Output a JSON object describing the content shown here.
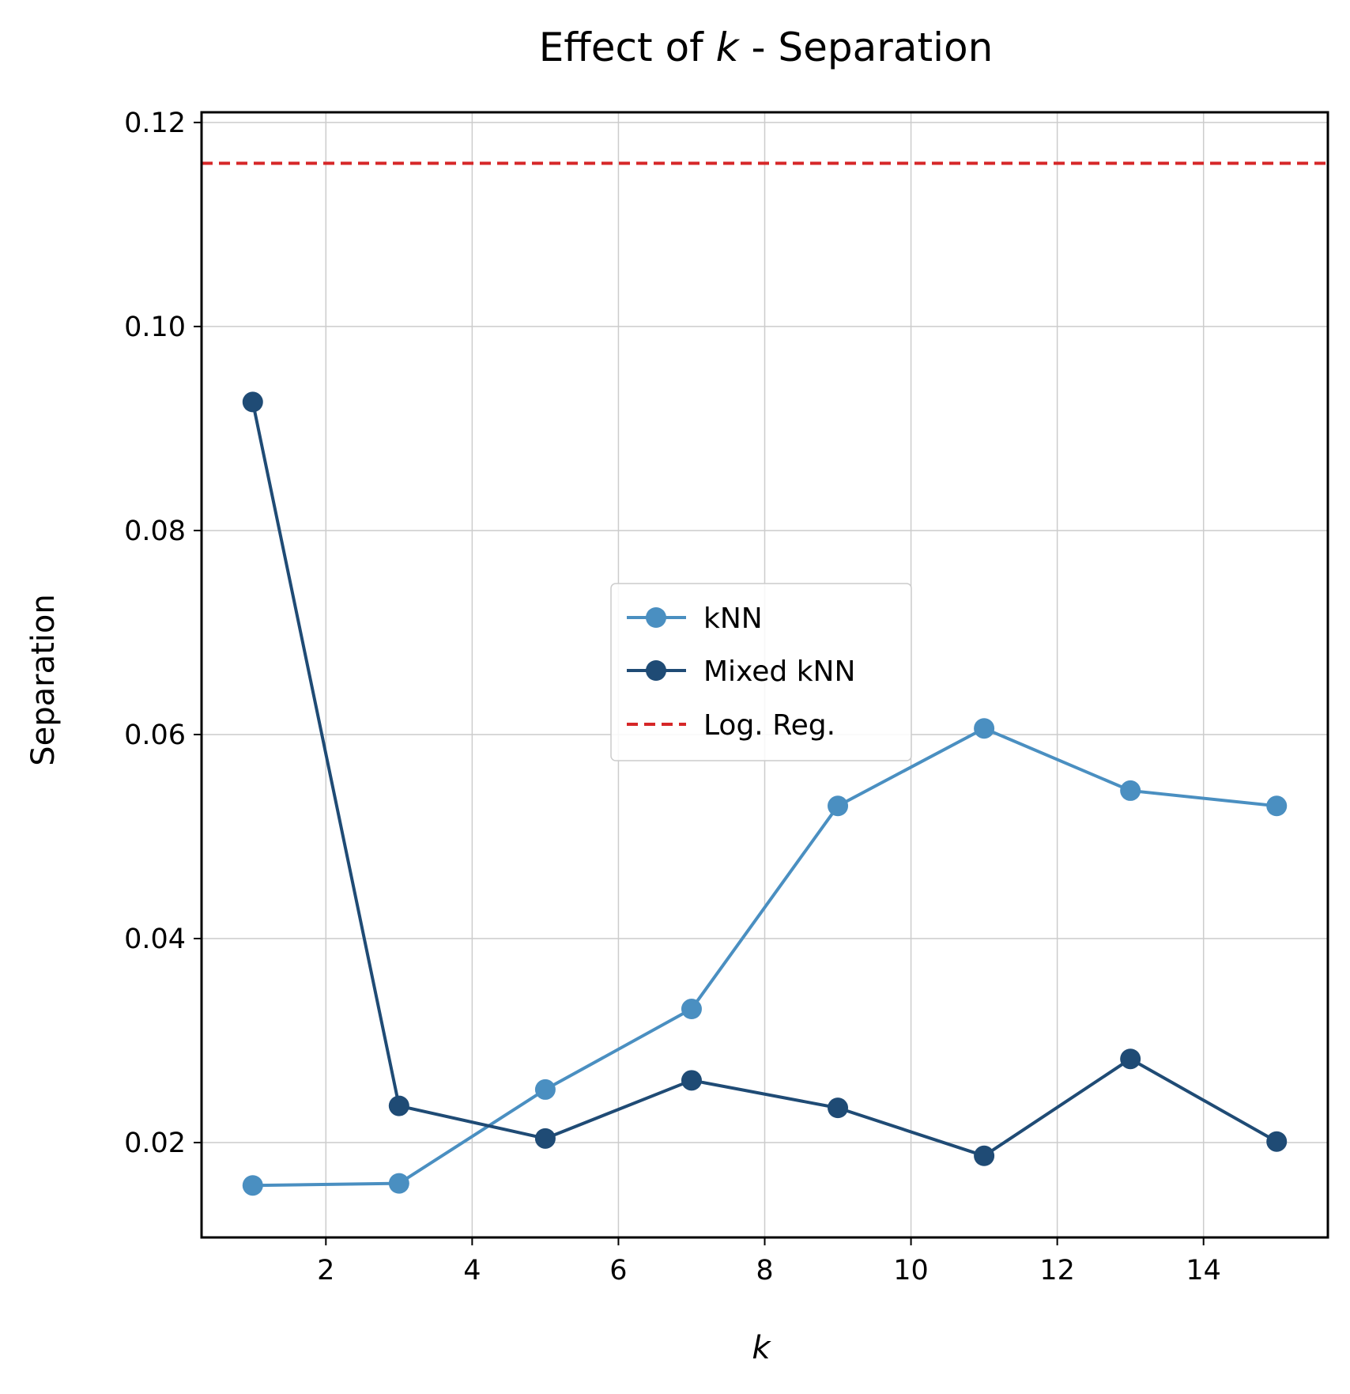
{
  "chart_data": {
    "type": "line",
    "title_prefix": "Effect of ",
    "title_variable": "k",
    "title_suffix": " - Separation",
    "xlabel": "k",
    "ylabel": "Separation",
    "xlim": [
      0.3,
      15.7
    ],
    "ylim": [
      0.0107,
      0.121
    ],
    "xticks": [
      2,
      4,
      6,
      8,
      10,
      12,
      14
    ],
    "yticks": [
      0.02,
      0.04,
      0.06,
      0.08,
      0.1,
      0.12
    ],
    "ytick_labels": [
      "0.02",
      "0.04",
      "0.06",
      "0.08",
      "0.10",
      "0.12"
    ],
    "grid": true,
    "legend_position": "center",
    "series": [
      {
        "name": "kNN",
        "color": "#4a8fc1",
        "x": [
          1,
          3,
          5,
          7,
          9,
          11,
          13,
          15
        ],
        "values": [
          0.0158,
          0.016,
          0.0252,
          0.0331,
          0.053,
          0.0606,
          0.0545,
          0.053
        ]
      },
      {
        "name": "Mixed kNN",
        "color": "#1f4b75",
        "x": [
          1,
          3,
          5,
          7,
          9,
          11,
          13,
          15
        ],
        "values": [
          0.0926,
          0.0236,
          0.0204,
          0.0261,
          0.0234,
          0.0187,
          0.0282,
          0.0201
        ]
      }
    ],
    "hlines": [
      {
        "name": "Log. Reg.",
        "value": 0.116,
        "color": "#d62728",
        "style": "dashed"
      }
    ]
  }
}
